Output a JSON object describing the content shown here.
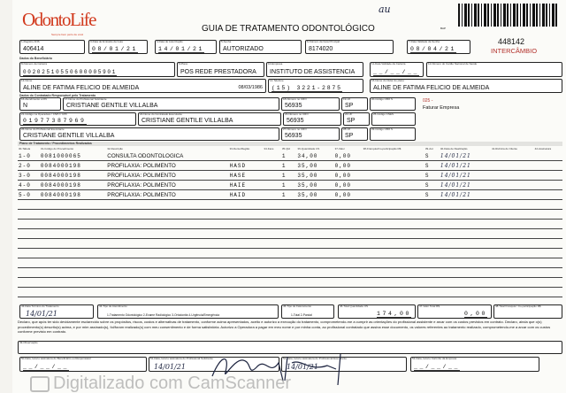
{
  "header": {
    "logo": "OdontoLife",
    "logo_tagline": "Sempre bem perto de você",
    "title": "GUIA DE TRATAMENTO ODONTOLÓGICO",
    "handwritten_mark": "au",
    "barcode_label": "BAP",
    "guide_number": "448142",
    "guide_type": "INTERCÂMBIO"
  },
  "guia": {
    "registro_ans": {
      "label": "1-Registro ANS",
      "value": "406414"
    },
    "data_emissao": {
      "label": "3-Data de Emissão da Guia",
      "value": "08/01/21"
    },
    "data_autorizacao": {
      "label": "4-Data de Autorização",
      "value": "14/01/21"
    },
    "senha": {
      "label": "5-Senha",
      "value": "AUTORIZADO"
    },
    "guia_principal": {
      "label": "6-Número da Guia Principal",
      "value": "8174020"
    },
    "validade_senha": {
      "label": "7-Data Validade da Senha",
      "value": "08/04/21"
    }
  },
  "beneficiario": {
    "section": "Dados do Beneficiário",
    "carteira": {
      "label": "8-Número da Carteira",
      "value": "00202510550600005901"
    },
    "plano": {
      "label": "9-Plano",
      "value": "POS REDE PRESTADORA"
    },
    "empresa": {
      "label": "10-Empresa",
      "value": "INSTITUTO DE ASSISTENCIA"
    },
    "validade_carteira": {
      "label": "11-Data Validade da Carteira",
      "value": "__/__/__"
    },
    "cns": {
      "label": "12-Número do Cartão Nacional de Saúde",
      "value": ""
    },
    "nome": {
      "label": "13-Nome",
      "value": "ALINE DE FATIMA FELICIO DE ALMEIDA"
    },
    "nascimento": "08/03/1986",
    "telefone": {
      "label": "14-Telefone",
      "value": "(15) 3221-2875"
    },
    "titular": {
      "label": "15-Nome do titular do plano",
      "value": "ALINE DE FATIMA FELICIO DE ALMEIDA"
    }
  },
  "contratado": {
    "section": "Dados do Contratado Responsável pelo Tratamento",
    "rn": {
      "label": "16-Atendimento a RN",
      "value": "N"
    },
    "solicitante": {
      "label": "17-Nome do Profissional Solicitante",
      "value": "CRISTIANE GENTILE VILLALBA"
    },
    "cro_solic": {
      "label": "18-Número no CRO",
      "value": "56935"
    },
    "uf_solic": {
      "label": "19-UF",
      "value": "SP"
    },
    "cbo_solic": {
      "label": "20-Código CBO S",
      "value": ""
    },
    "faturamento_code": "025 -",
    "faturamento_text": "Faturar Empresa",
    "cod_operadora": {
      "label": "21-Código na Operadora / CNPJ / CPF",
      "value": "01977387969"
    },
    "executante": {
      "label": "22-Nome do Contratado Executante",
      "value": "CRISTIANE GENTILE VILLALBA"
    },
    "cro_exec": {
      "label": "23-Número no CRO",
      "value": "56935"
    },
    "uf_exec": {
      "label": "24-UF",
      "value": "SP"
    },
    "cnes": {
      "label": "25-Código CNES",
      "value": ""
    },
    "prof_exec": {
      "label": "26-Nome do Profissional Executante",
      "value": "CRISTIANE GENTILE VILLALBA"
    },
    "cro_prof": {
      "label": "27-Número no CRO",
      "value": "56935"
    },
    "uf_prof": {
      "label": "28-UF",
      "value": "SP"
    },
    "cbo_prof": {
      "label": "29-Código CBO S",
      "value": ""
    }
  },
  "plano_tratamento": {
    "section": "Plano de Tratamento / Procedimentos Realizados",
    "columns": [
      "30-Tabela",
      "31-Código do Procedimento",
      "32-Descrição",
      "33-Dente/Região",
      "34-Face",
      "35-Qtd",
      "36-Quantidade US",
      "37-Valor",
      "38-Franquia/Co-participação R$",
      "39-Aut",
      "40-Data de Realização",
      "41-Rubrica do Cliente",
      "42-Assinatura"
    ],
    "rows": [
      {
        "n": "1-",
        "tabela": "0",
        "codigo": "0081000065",
        "descricao": "CONSULTA ODONTOLOGICA",
        "dente": "",
        "face": "",
        "qtd": "1",
        "us": "34,00",
        "valor": "0,00",
        "franquia": "",
        "aut": "S",
        "data": "14/01/21"
      },
      {
        "n": "2-",
        "tabela": "0",
        "codigo": "0084000198",
        "descricao": "PROFILAXIA: POLIMENTO",
        "dente": "HASD",
        "face": "",
        "qtd": "1",
        "us": "35,00",
        "valor": "0,00",
        "franquia": "",
        "aut": "S",
        "data": "14/01/21"
      },
      {
        "n": "3-",
        "tabela": "0",
        "codigo": "0084000198",
        "descricao": "PROFILAXIA: POLIMENTO",
        "dente": "HASE",
        "face": "",
        "qtd": "1",
        "us": "35,00",
        "valor": "0,00",
        "franquia": "",
        "aut": "S",
        "data": "14/01/21"
      },
      {
        "n": "4-",
        "tabela": "0",
        "codigo": "0084000198",
        "descricao": "PROFILAXIA: POLIMENTO",
        "dente": "HAIE",
        "face": "",
        "qtd": "1",
        "us": "35,00",
        "valor": "0,00",
        "franquia": "",
        "aut": "S",
        "data": "14/01/21"
      },
      {
        "n": "5-",
        "tabela": "0",
        "codigo": "0084000198",
        "descricao": "PROFILAXIA: POLIMENTO",
        "dente": "HAID",
        "face": "",
        "qtd": "1",
        "us": "35,00",
        "valor": "0,00",
        "franquia": "",
        "aut": "S",
        "data": "14/01/21"
      }
    ],
    "blank_rows": 10
  },
  "totais": {
    "termino": {
      "label": "43-Data Término do Tratamento",
      "value": "14/01/21"
    },
    "tipo_atendimento": {
      "label": "44-Tipo de Atendimento",
      "options": "1-Tratamento Odontológico  2-Exame Radiológico  3-Ortodontia  4-Urgência/Emergência"
    },
    "tipo_faturamento": {
      "label": "45-Tipo de Faturamento",
      "options": "1-Total  2-Parcial"
    },
    "total_us": {
      "label": "46-Total Quantidade US",
      "value": "174,00"
    },
    "valor_total": {
      "label": "47-Valor Total R$",
      "value": "0,00"
    },
    "total_franquia": {
      "label": "48-Total Franquia / Co-participação R$",
      "value": ""
    }
  },
  "declaracao": "Declaro, que após ter sido devidamente esclarecido sobre os propósitos, riscos, custos e alternativas de tratamento, conforme acima apresentados, aceito e autorizo a execução do tratamento, comprometendo-me a cumprir as orientações do profissional assistente e arcar com os custos previstos em contrato. Declaro, ainda que o(s) procedimento(s) descrito(s) acima, e por mim assinado(s), foi/foram realizado(s) com meu consentimento e de forma satisfatória. Autorizo a Operadora a pagar em meu nome e por minha conta, ao profissional contratado que assina esse documento, os valores referentes ao tratamento realizado, comprometendo-me a arcar com os custos conforme previsto em contrato.",
  "observacao": {
    "label": "49-Observação",
    "value": ""
  },
  "assinaturas": {
    "beneficiario": {
      "label": "50-Data, local e assinatura do Beneficiário ou Responsável",
      "value": "__/__/__"
    },
    "solicitante": {
      "label": "51-Data, local e assinatura do Profissional Solicitante",
      "value": "14/01/21"
    },
    "executante": {
      "label": "52-Data, local e assinatura do Profissional Executante",
      "value": "14/01/21"
    },
    "empresa": {
      "label": "53-Data, local e Carimbo da Empresa",
      "value": "__/__/__"
    }
  },
  "watermark": "Digitalizado com CamScanner",
  "colors": {
    "brand": "#d23a1e",
    "ink": "#1d2440"
  }
}
